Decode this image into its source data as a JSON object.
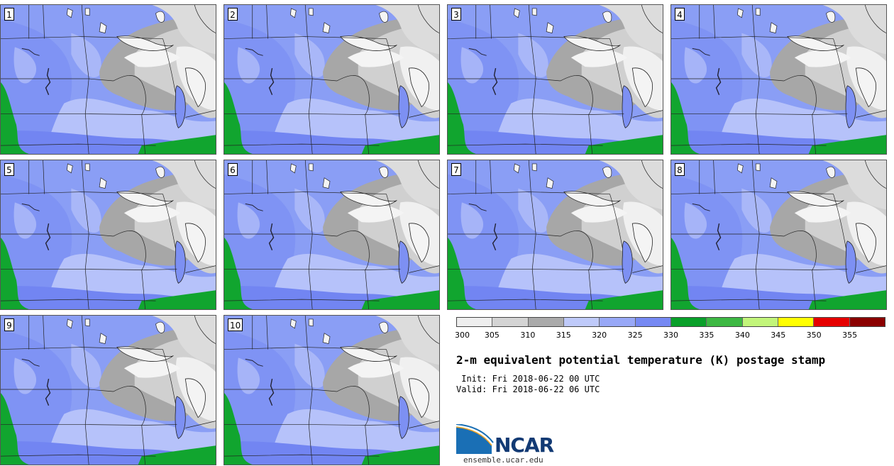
{
  "panels": [
    {
      "label": "1"
    },
    {
      "label": "2"
    },
    {
      "label": "3"
    },
    {
      "label": "4"
    },
    {
      "label": "5"
    },
    {
      "label": "6"
    },
    {
      "label": "7"
    },
    {
      "label": "8"
    },
    {
      "label": "9"
    },
    {
      "label": "10"
    }
  ],
  "colorbar": {
    "ticks": [
      "300",
      "305",
      "310",
      "315",
      "320",
      "325",
      "330",
      "335",
      "340",
      "345",
      "350",
      "355"
    ],
    "colors": [
      "#eeeeee",
      "#d4d4d4",
      "#aaaaaa",
      "#bfcafa",
      "#98a8f7",
      "#7689f3",
      "#0aa02a",
      "#3db843",
      "#c2f57a",
      "#ffff00",
      "#e60000",
      "#8b0000"
    ]
  },
  "title": "2-m equivalent potential temperature (K) postage stamp",
  "init_line": " Init: Fri 2018-06-22 00 UTC",
  "valid_line": "Valid: Fri 2018-06-22 06 UTC",
  "logo": {
    "name": "NCAR",
    "url": "ensemble.ucar.edu"
  },
  "map_colors": {
    "base": "#8a9ef5",
    "light_blue": "#b6c2fa",
    "dark_blue": "#7285f2",
    "gray": "#a7a7a7",
    "light_gray": "#d0d0d0",
    "white": "#f4f4f4",
    "green": "#11a52f",
    "lines": "#222222"
  }
}
